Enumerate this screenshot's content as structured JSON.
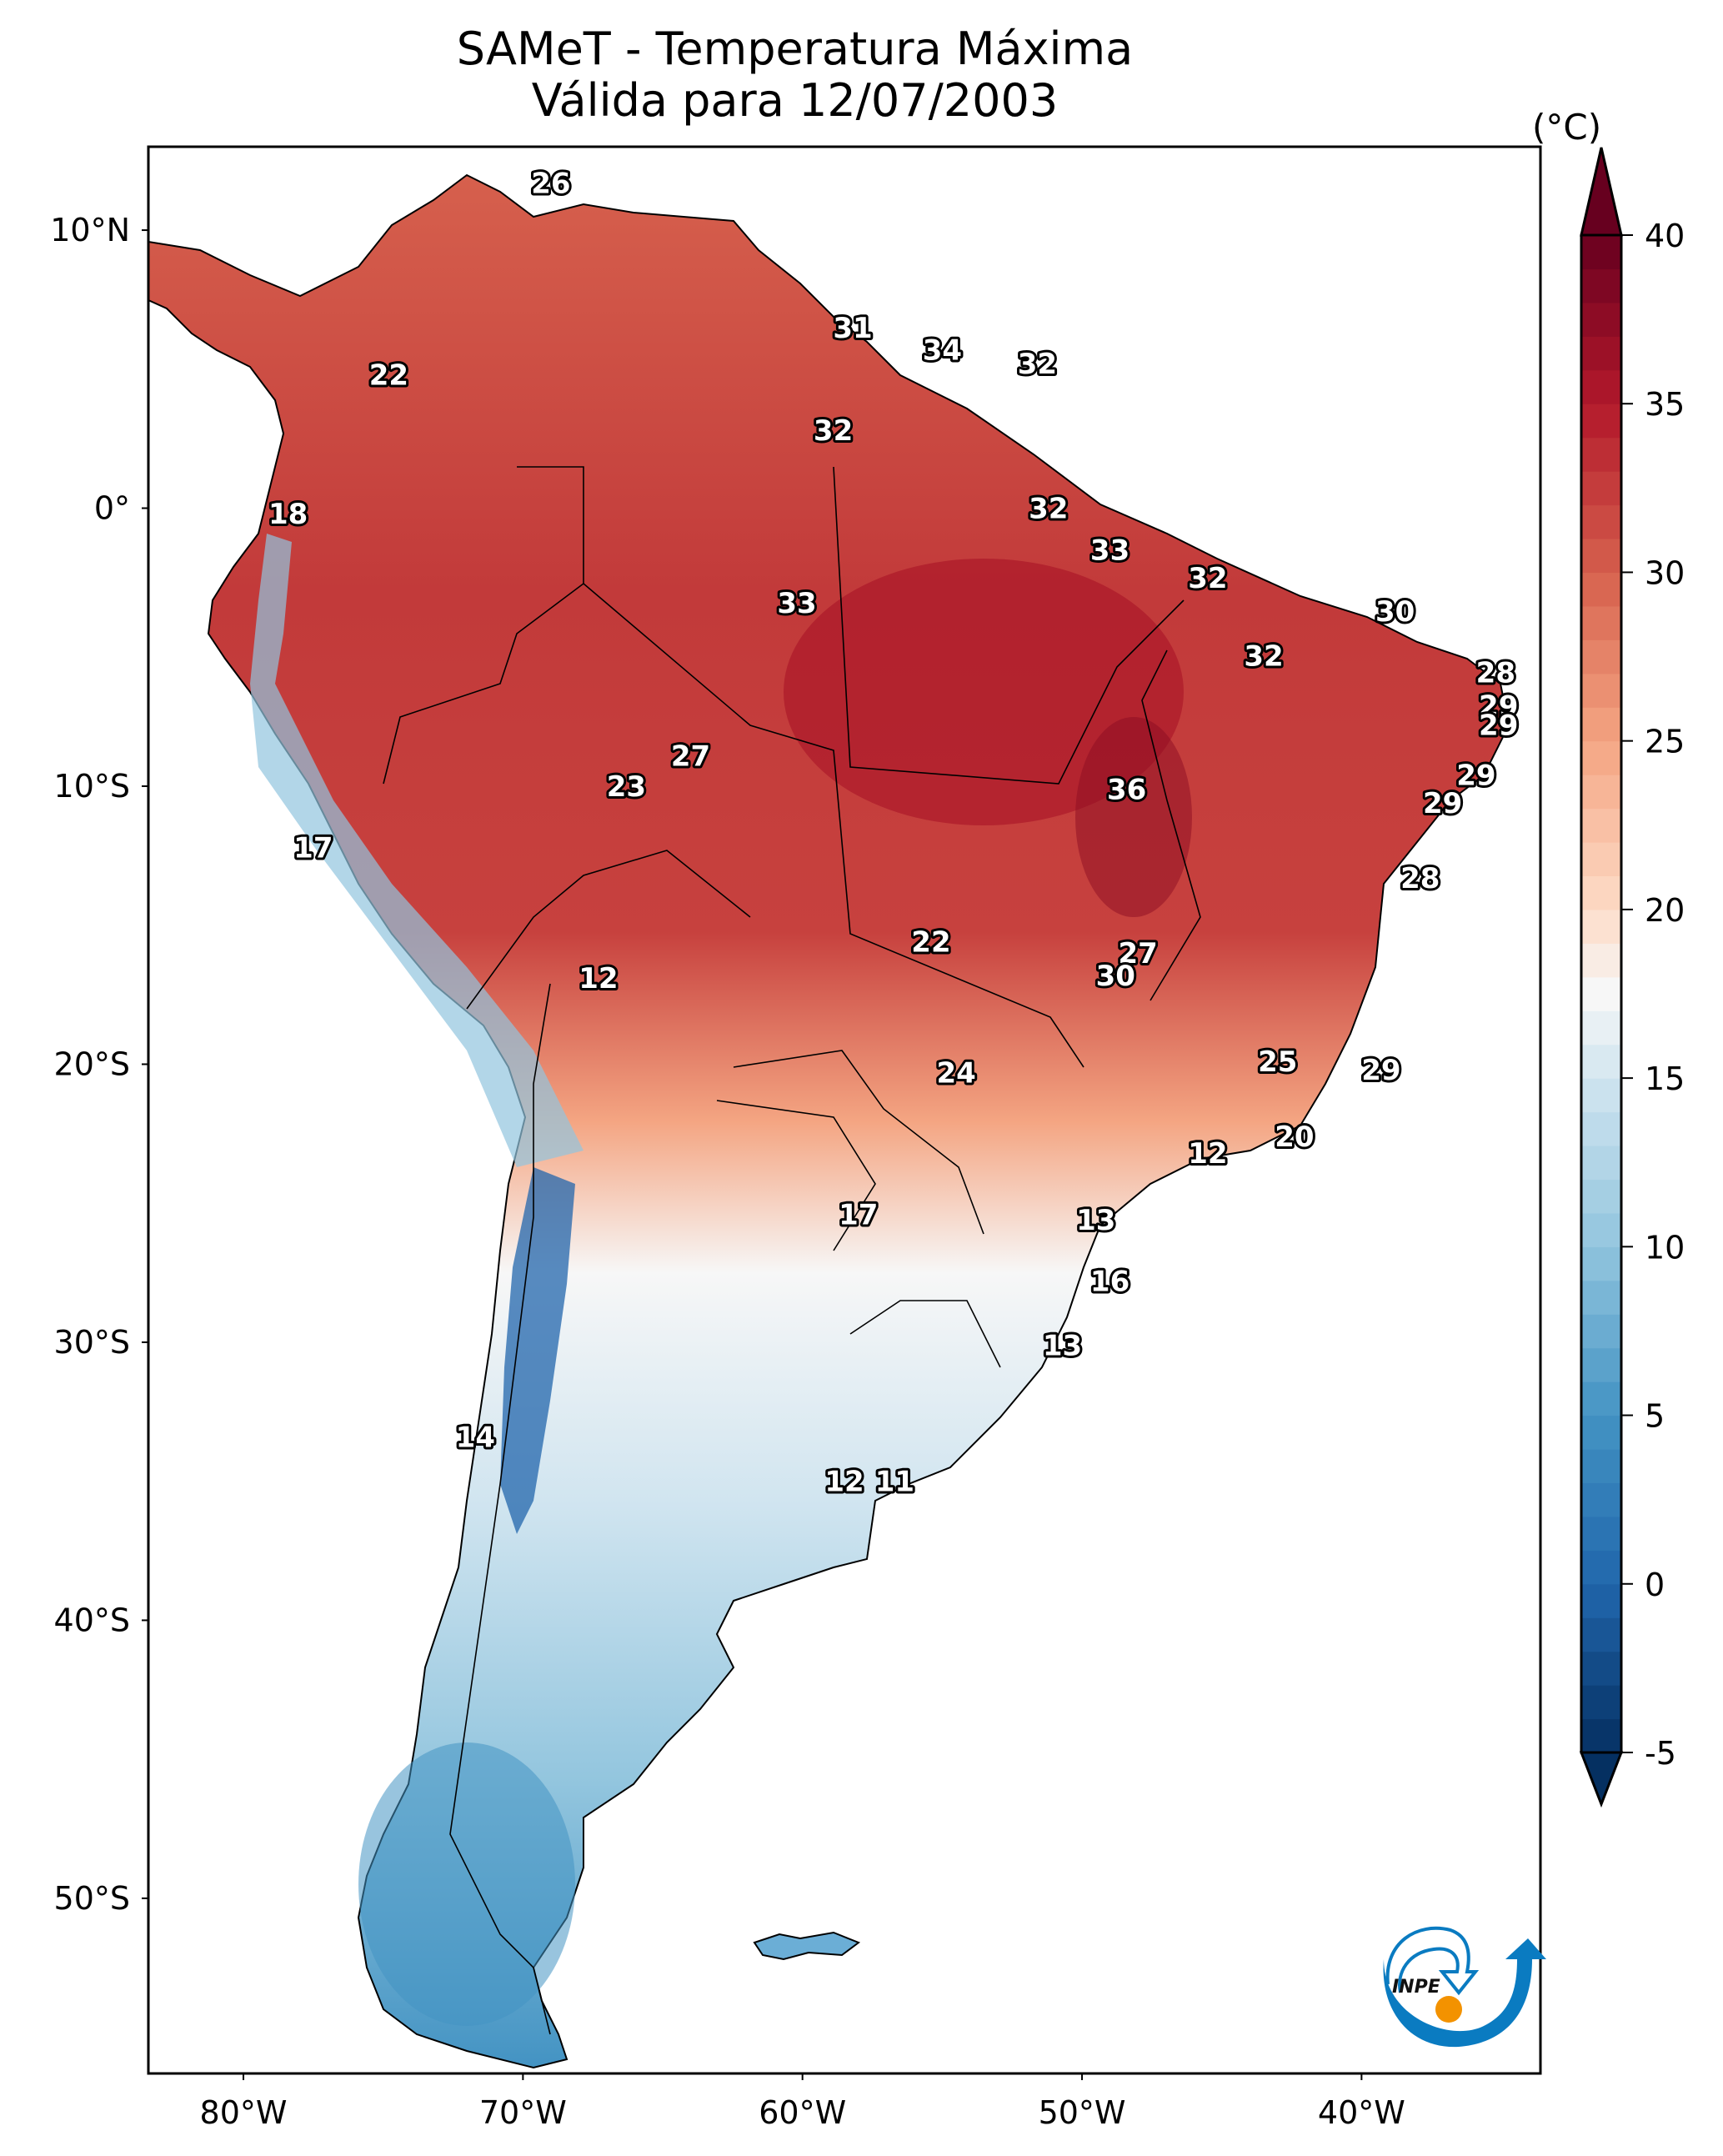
{
  "title": {
    "line1": "SAMeT - Temperatura Máxima",
    "line2": "Válida para 12/07/2003"
  },
  "chart_data": {
    "type": "heatmap",
    "subtype": "geographic-filled-contour",
    "title": "SAMeT - Temperatura Máxima",
    "subtitle": "Válida para 12/07/2003",
    "variable": "Maximum temperature",
    "units": "(°C)",
    "region": "South America",
    "extent": {
      "lon": [
        -83.4,
        -33.6
      ],
      "lat": [
        -56.3,
        13.0
      ]
    },
    "xticks": [
      {
        "value": -80,
        "label": "80°W"
      },
      {
        "value": -70,
        "label": "70°W"
      },
      {
        "value": -60,
        "label": "60°W"
      },
      {
        "value": -50,
        "label": "50°W"
      },
      {
        "value": -40,
        "label": "40°W"
      }
    ],
    "yticks": [
      {
        "value": 10,
        "label": "10°N"
      },
      {
        "value": 0,
        "label": "0°"
      },
      {
        "value": -10,
        "label": "10°S"
      },
      {
        "value": -20,
        "label": "20°S"
      },
      {
        "value": -30,
        "label": "30°S"
      },
      {
        "value": -40,
        "label": "40°S"
      },
      {
        "value": -50,
        "label": "50°S"
      }
    ],
    "colorbar": {
      "label": "(°C)",
      "colormap": "RdBu_r",
      "range": [
        -5,
        40
      ],
      "extend": "both",
      "ticks": [
        40,
        35,
        30,
        25,
        20,
        15,
        10,
        5,
        0,
        -5
      ],
      "tick_labels": [
        "40",
        "35",
        "30",
        "25",
        "20",
        "15",
        "10",
        "5",
        "0",
        "-5"
      ],
      "stops": [
        {
          "value": -5,
          "color": "#053061"
        },
        {
          "value": 0,
          "color": "#2166ac"
        },
        {
          "value": 5,
          "color": "#4393c3"
        },
        {
          "value": 10,
          "color": "#92c5de"
        },
        {
          "value": 15,
          "color": "#d1e5f0"
        },
        {
          "value": 17.5,
          "color": "#f7f7f7"
        },
        {
          "value": 20,
          "color": "#fddbc7"
        },
        {
          "value": 25,
          "color": "#f4a582"
        },
        {
          "value": 30,
          "color": "#d6604d"
        },
        {
          "value": 35,
          "color": "#b2182b"
        },
        {
          "value": 40,
          "color": "#67001f"
        }
      ]
    },
    "contour_labels": [
      {
        "value": 26,
        "lon": -69.0,
        "lat": 11.7
      },
      {
        "value": 22,
        "lon": -74.8,
        "lat": 4.8
      },
      {
        "value": 31,
        "lon": -58.2,
        "lat": 6.5
      },
      {
        "value": 34,
        "lon": -55.0,
        "lat": 5.7
      },
      {
        "value": 32,
        "lon": -51.6,
        "lat": 5.2
      },
      {
        "value": 32,
        "lon": -58.9,
        "lat": 2.8
      },
      {
        "value": 18,
        "lon": -78.4,
        "lat": -0.2
      },
      {
        "value": 32,
        "lon": -51.2,
        "lat": 0.0
      },
      {
        "value": 33,
        "lon": -49.0,
        "lat": -1.5
      },
      {
        "value": 32,
        "lon": -45.5,
        "lat": -2.5
      },
      {
        "value": 33,
        "lon": -60.2,
        "lat": -3.4
      },
      {
        "value": 30,
        "lon": -38.8,
        "lat": -3.7
      },
      {
        "value": 32,
        "lon": -43.5,
        "lat": -5.3
      },
      {
        "value": 28,
        "lon": -35.2,
        "lat": -5.9
      },
      {
        "value": 29,
        "lon": -35.1,
        "lat": -7.1
      },
      {
        "value": 29,
        "lon": -35.1,
        "lat": -7.8
      },
      {
        "value": 27,
        "lon": -64.0,
        "lat": -8.9
      },
      {
        "value": 29,
        "lon": -35.9,
        "lat": -9.6
      },
      {
        "value": 23,
        "lon": -66.3,
        "lat": -10.0
      },
      {
        "value": 36,
        "lon": -48.4,
        "lat": -10.1
      },
      {
        "value": 29,
        "lon": -37.1,
        "lat": -10.6
      },
      {
        "value": 17,
        "lon": -77.5,
        "lat": -12.2
      },
      {
        "value": 28,
        "lon": -37.9,
        "lat": -13.3
      },
      {
        "value": 22,
        "lon": -55.4,
        "lat": -15.6
      },
      {
        "value": 27,
        "lon": -48.0,
        "lat": -16.0
      },
      {
        "value": 12,
        "lon": -67.3,
        "lat": -16.9
      },
      {
        "value": 30,
        "lon": -48.8,
        "lat": -16.8
      },
      {
        "value": 25,
        "lon": -43.0,
        "lat": -19.9
      },
      {
        "value": 29,
        "lon": -39.3,
        "lat": -20.2
      },
      {
        "value": 24,
        "lon": -54.5,
        "lat": -20.3
      },
      {
        "value": 20,
        "lon": -42.4,
        "lat": -22.6
      },
      {
        "value": 12,
        "lon": -45.5,
        "lat": -23.2
      },
      {
        "value": 17,
        "lon": -58.0,
        "lat": -25.4
      },
      {
        "value": 13,
        "lon": -49.5,
        "lat": -25.6
      },
      {
        "value": 16,
        "lon": -49.0,
        "lat": -27.8
      },
      {
        "value": 13,
        "lon": -50.7,
        "lat": -30.1
      },
      {
        "value": 14,
        "lon": -71.7,
        "lat": -33.4
      },
      {
        "value": 12,
        "lon": -58.5,
        "lat": -35.0
      },
      {
        "value": 11,
        "lon": -56.7,
        "lat": -35.0
      }
    ],
    "grid": false,
    "legend": "colorbar-right"
  },
  "logo": {
    "text": "INPE",
    "colors": {
      "arc": "#0a7bc1",
      "sun": "#f39200"
    }
  }
}
